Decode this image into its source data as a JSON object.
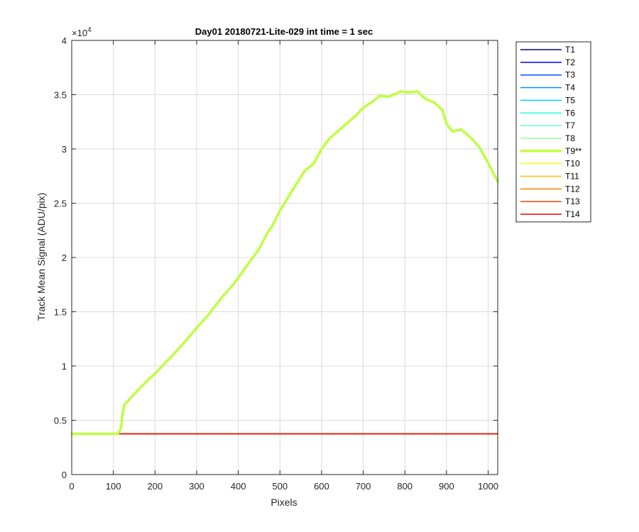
{
  "chart_data": {
    "type": "line",
    "title": "Day01 20180721-Lite-029 int time = 1 sec",
    "xlabel": "Pixels",
    "ylabel": "Track Mean Signal (ADU/pix)",
    "y_exponent_label": "×10",
    "y_exponent_power": "4",
    "xlim": [
      0,
      1023
    ],
    "ylim": [
      0,
      40000
    ],
    "x_ticks": [
      0,
      100,
      200,
      300,
      400,
      500,
      600,
      700,
      800,
      900,
      1000
    ],
    "x_tick_labels": [
      "0",
      "100",
      "200",
      "300",
      "400",
      "500",
      "600",
      "700",
      "800",
      "900",
      "1000"
    ],
    "y_ticks": [
      0,
      5000,
      10000,
      15000,
      20000,
      25000,
      30000,
      35000,
      40000
    ],
    "y_tick_labels": [
      "0",
      "0.5",
      "1",
      "1.5",
      "2",
      "2.5",
      "3",
      "3.5",
      "4"
    ],
    "grid": true,
    "legend_position": "outside top-right",
    "highlight_series": "T9**",
    "series": [
      {
        "name": "T1",
        "color": "#00008f",
        "x": [
          0,
          1023
        ],
        "y": [
          3750,
          3750
        ]
      },
      {
        "name": "T2",
        "color": "#0000ef",
        "x": [
          0,
          1023
        ],
        "y": [
          3750,
          3750
        ]
      },
      {
        "name": "T3",
        "color": "#0050ff",
        "x": [
          0,
          1023
        ],
        "y": [
          3750,
          3750
        ]
      },
      {
        "name": "T4",
        "color": "#0090ff",
        "x": [
          0,
          1023
        ],
        "y": [
          3750,
          3750
        ]
      },
      {
        "name": "T5",
        "color": "#00cfff",
        "x": [
          0,
          1023
        ],
        "y": [
          3750,
          3750
        ]
      },
      {
        "name": "T6",
        "color": "#20ffdf",
        "x": [
          0,
          1023
        ],
        "y": [
          3750,
          3750
        ]
      },
      {
        "name": "T7",
        "color": "#60ffbf",
        "x": [
          0,
          1023
        ],
        "y": [
          3750,
          3750
        ]
      },
      {
        "name": "T8",
        "color": "#8fff9f",
        "x": [
          0,
          1023
        ],
        "y": [
          3750,
          3750
        ]
      },
      {
        "name": "T9**",
        "color": "#bfff40",
        "x": [
          0,
          110,
          118,
          122,
          126,
          140,
          160,
          180,
          200,
          220,
          250,
          280,
          300,
          330,
          360,
          390,
          420,
          450,
          470,
          480,
          500,
          530,
          560,
          580,
          600,
          620,
          650,
          680,
          700,
          720,
          740,
          760,
          790,
          810,
          830,
          850,
          870,
          890,
          900,
          915,
          935,
          960,
          980,
          1000,
          1023
        ],
        "y": [
          3750,
          3750,
          4200,
          5600,
          6400,
          7000,
          7800,
          8600,
          9300,
          10100,
          11300,
          12600,
          13500,
          14800,
          16300,
          17600,
          19200,
          20800,
          22300,
          22800,
          24300,
          26200,
          28000,
          28600,
          30000,
          31000,
          32000,
          33000,
          33800,
          34300,
          34900,
          34800,
          35300,
          35200,
          35300,
          34600,
          34300,
          33600,
          32300,
          31600,
          31800,
          31000,
          30100,
          28700,
          27000
        ],
        "width": 3.5
      },
      {
        "name": "T10",
        "color": "#ffff00",
        "x": [
          0,
          1023
        ],
        "y": [
          3750,
          3750
        ]
      },
      {
        "name": "T11",
        "color": "#ffbf00",
        "x": [
          0,
          1023
        ],
        "y": [
          3750,
          3750
        ]
      },
      {
        "name": "T12",
        "color": "#ff8000",
        "x": [
          0,
          1023
        ],
        "y": [
          3750,
          3750
        ]
      },
      {
        "name": "T13",
        "color": "#ff4000",
        "x": [
          0,
          1023
        ],
        "y": [
          3750,
          3750
        ]
      },
      {
        "name": "T14",
        "color": "#ef0000",
        "x": [
          0,
          1023
        ],
        "y": [
          3750,
          3750
        ]
      }
    ]
  }
}
